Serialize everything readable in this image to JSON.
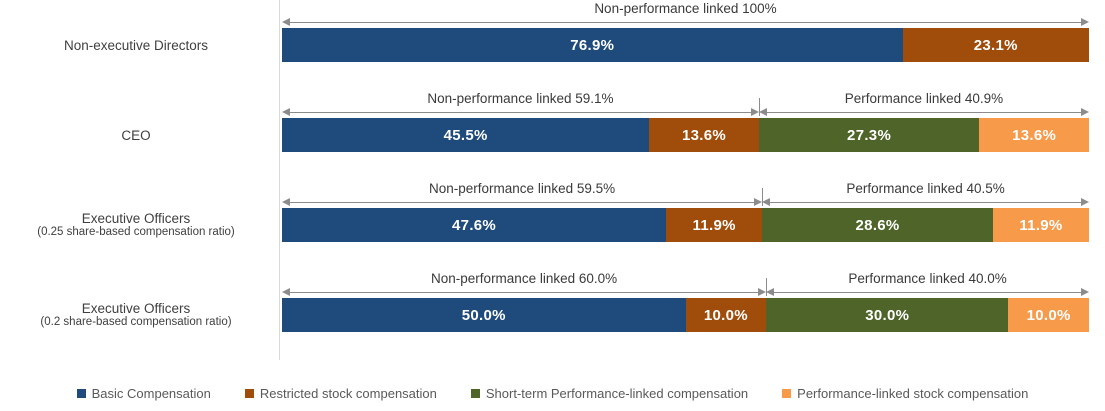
{
  "chart_data": {
    "type": "bar",
    "orientation": "horizontal_stacked",
    "unit": "percent",
    "title": "",
    "xlim": [
      0,
      100
    ],
    "rows": [
      {
        "label": "Non-executive Directors",
        "sublabel": "",
        "brackets": [
          {
            "label": "Non-performance linked 100%",
            "span": 100
          }
        ],
        "segments": [
          {
            "series": "Basic Compensation",
            "value": 76.9,
            "label": "76.9%",
            "color_index": 0
          },
          {
            "series": "Restricted stock compensation",
            "value": 23.1,
            "label": "23.1%",
            "color_index": 1
          }
        ]
      },
      {
        "label": "CEO",
        "sublabel": "",
        "brackets": [
          {
            "label": "Non-performance linked 59.1%",
            "span": 59.1
          },
          {
            "label": "Performance linked 40.9%",
            "span": 40.9
          }
        ],
        "segments": [
          {
            "series": "Basic Compensation",
            "value": 45.5,
            "label": "45.5%",
            "color_index": 0
          },
          {
            "series": "Restricted stock compensation",
            "value": 13.6,
            "label": "13.6%",
            "color_index": 1
          },
          {
            "series": "Short-term Performance-linked compensation",
            "value": 27.3,
            "label": "27.3%",
            "color_index": 2
          },
          {
            "series": "Performance-linked stock compensation",
            "value": 13.6,
            "label": "13.6%",
            "color_index": 3
          }
        ]
      },
      {
        "label": "Executive Officers",
        "sublabel": "(0.25 share-based compensation ratio)",
        "brackets": [
          {
            "label": "Non-performance linked 59.5%",
            "span": 59.5
          },
          {
            "label": "Performance linked 40.5%",
            "span": 40.5
          }
        ],
        "segments": [
          {
            "series": "Basic Compensation",
            "value": 47.6,
            "label": "47.6%",
            "color_index": 0
          },
          {
            "series": "Restricted stock compensation",
            "value": 11.9,
            "label": "11.9%",
            "color_index": 1
          },
          {
            "series": "Short-term Performance-linked compensation",
            "value": 28.6,
            "label": "28.6%",
            "color_index": 2
          },
          {
            "series": "Performance-linked stock compensation",
            "value": 11.9,
            "label": "11.9%",
            "color_index": 3
          }
        ]
      },
      {
        "label": "Executive Officers",
        "sublabel": "(0.2 share-based compensation ratio)",
        "brackets": [
          {
            "label": "Non-performance linked 60.0%",
            "span": 60.0
          },
          {
            "label": "Performance linked 40.0%",
            "span": 40.0
          }
        ],
        "segments": [
          {
            "series": "Basic Compensation",
            "value": 50.0,
            "label": "50.0%",
            "color_index": 0
          },
          {
            "series": "Restricted stock compensation",
            "value": 10.0,
            "label": "10.0%",
            "color_index": 1
          },
          {
            "series": "Short-term Performance-linked compensation",
            "value": 30.0,
            "label": "30.0%",
            "color_index": 2
          },
          {
            "series": "Performance-linked stock compensation",
            "value": 10.0,
            "label": "10.0%",
            "color_index": 3
          }
        ]
      }
    ],
    "legend": [
      {
        "label": "Basic Compensation",
        "color": "#1F4A7C"
      },
      {
        "label": "Restricted stock compensation",
        "color": "#A04C0A"
      },
      {
        "label": "Short-term Performance-linked compensation",
        "color": "#4E6428"
      },
      {
        "label": "Performance-linked stock compensation",
        "color": "#F79A4A"
      }
    ],
    "layout": {
      "legend_position": "bottom",
      "grid": false,
      "axis_line_color": "#D9D9D9",
      "arrow_color": "#8C8C8C",
      "bar_label_color": "#FFFFFF",
      "row_label_color": "#3F3F3F",
      "legend_text_color": "#595959"
    }
  }
}
